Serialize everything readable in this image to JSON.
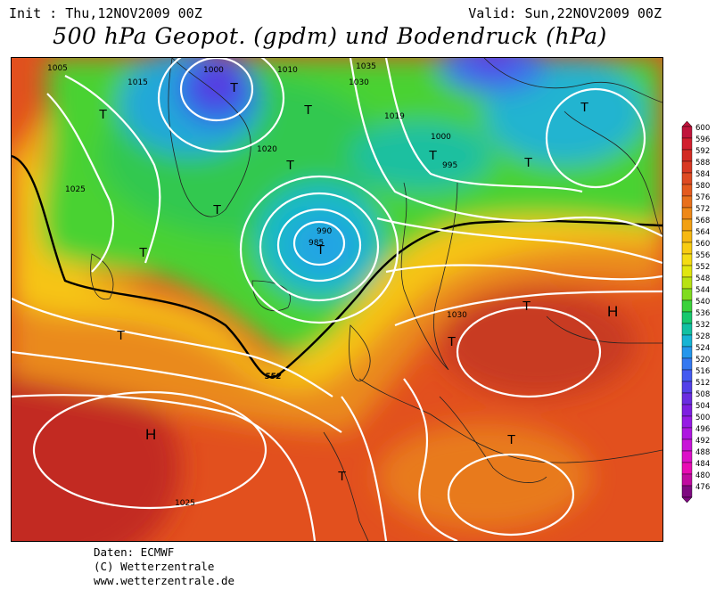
{
  "header": {
    "init": "Init : Thu,12NOV2009 00Z",
    "valid": "Valid: Sun,22NOV2009 00Z",
    "title": "500 hPa Geopot. (gpdm) und Bodendruck (hPa)"
  },
  "legend": {
    "levels": [
      "600",
      "596",
      "592",
      "588",
      "584",
      "580",
      "576",
      "572",
      "568",
      "564",
      "560",
      "556",
      "552",
      "548",
      "544",
      "540",
      "536",
      "532",
      "528",
      "524",
      "520",
      "516",
      "512",
      "508",
      "504",
      "500",
      "496",
      "492",
      "488",
      "484",
      "480",
      "476"
    ],
    "colors": [
      "#c0143c",
      "#d21e2e",
      "#d22a22",
      "#d83822",
      "#de4a22",
      "#e45a1e",
      "#e8701c",
      "#ee8818",
      "#f2a014",
      "#f6b812",
      "#f8cc12",
      "#f4dc14",
      "#e0e610",
      "#b8e214",
      "#80dc20",
      "#3cd23c",
      "#18c86e",
      "#12c0a2",
      "#16b4d4",
      "#2496ec",
      "#3478f0",
      "#445af0",
      "#5240e8",
      "#6a2ce0",
      "#7e1ee0",
      "#961ae4",
      "#ae16e0",
      "#c814d8",
      "#dc10c8",
      "#e80cb4",
      "#c00ca0",
      "#7e0a80"
    ]
  },
  "map": {
    "geopotential_label": "552",
    "pressure_labels": [
      "1005",
      "1000",
      "1010",
      "1035",
      "1015",
      "1030",
      "1025",
      "1020",
      "1019",
      "995",
      "1000",
      "985",
      "990",
      "1030",
      "1025"
    ],
    "lows_label": "T",
    "highs_label": "H"
  },
  "credits": {
    "line1": "Daten: ECMWF",
    "line2": "(C) Wetterzentrale",
    "line3": "www.wetterzentrale.de"
  }
}
